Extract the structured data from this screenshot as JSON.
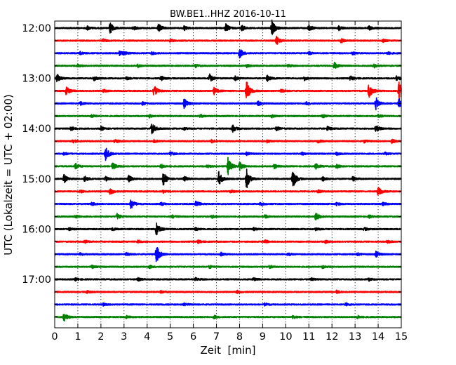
{
  "chart_data": {
    "type": "line",
    "title": "BW.BE1..HHZ 2016-10-11",
    "xlabel": "Zeit  [min]",
    "ylabel": "UTC (Lokalzeit = UTC + 02:00)",
    "xlim": [
      0,
      15
    ],
    "x_ticks": [
      "0",
      "1",
      "2",
      "3",
      "4",
      "5",
      "6",
      "7",
      "8",
      "9",
      "10",
      "11",
      "12",
      "13",
      "14",
      "15"
    ],
    "hour_labels": [
      "12:00",
      "13:00",
      "14:00",
      "15:00",
      "16:00",
      "17:00"
    ],
    "grid": "vertical-dotted",
    "colors": [
      "#000000",
      "#ff0000",
      "#0000ff",
      "#008000"
    ],
    "row_interval_min": 15,
    "series": [
      {
        "start": "12:00",
        "events": [
          [
            1.4,
            3
          ],
          [
            2.4,
            8
          ],
          [
            3.4,
            3
          ],
          [
            4.5,
            6
          ],
          [
            5.6,
            3
          ],
          [
            7.4,
            6
          ],
          [
            8.1,
            4
          ],
          [
            9.4,
            11
          ],
          [
            11.0,
            5
          ],
          [
            12.3,
            3
          ],
          [
            13.6,
            3
          ]
        ]
      },
      {
        "start": "12:15",
        "events": [
          [
            2.1,
            2
          ],
          [
            5.0,
            2
          ],
          [
            9.6,
            6
          ],
          [
            12.4,
            3
          ],
          [
            14.2,
            2
          ]
        ]
      },
      {
        "start": "12:30",
        "events": [
          [
            1.1,
            2
          ],
          [
            2.8,
            3
          ],
          [
            3.0,
            2
          ],
          [
            4.2,
            2
          ],
          [
            8.0,
            7
          ],
          [
            11.0,
            2
          ],
          [
            12.9,
            2
          ],
          [
            14.4,
            2
          ]
        ]
      },
      {
        "start": "12:45",
        "events": [
          [
            1.0,
            2
          ],
          [
            3.6,
            2
          ],
          [
            6.1,
            2
          ],
          [
            8.3,
            2
          ],
          [
            10.1,
            2
          ],
          [
            12.1,
            5
          ],
          [
            13.8,
            3
          ]
        ]
      },
      {
        "start": "13:00",
        "events": [
          [
            0.1,
            6
          ],
          [
            1.7,
            3
          ],
          [
            3.1,
            2
          ],
          [
            4.6,
            3
          ],
          [
            6.7,
            6
          ],
          [
            7.8,
            3
          ],
          [
            9.2,
            4
          ],
          [
            10.8,
            3
          ],
          [
            12.8,
            3
          ],
          [
            14.8,
            4
          ]
        ]
      },
      {
        "start": "13:15",
        "events": [
          [
            0.5,
            6
          ],
          [
            2.1,
            2
          ],
          [
            4.3,
            8
          ],
          [
            6.9,
            5
          ],
          [
            8.3,
            14
          ],
          [
            9.8,
            2
          ],
          [
            13.6,
            11
          ],
          [
            14.9,
            16
          ]
        ]
      },
      {
        "start": "13:30",
        "events": [
          [
            1.1,
            3
          ],
          [
            3.8,
            2
          ],
          [
            5.6,
            7
          ],
          [
            8.8,
            3
          ],
          [
            10.9,
            2
          ],
          [
            13.9,
            9
          ],
          [
            14.9,
            7
          ]
        ]
      },
      {
        "start": "13:45",
        "events": [
          [
            1.6,
            2
          ],
          [
            4.1,
            2
          ],
          [
            6.3,
            2
          ],
          [
            9.4,
            2
          ],
          [
            11.6,
            2
          ],
          [
            14.0,
            2
          ]
        ]
      },
      {
        "start": "14:00",
        "events": [
          [
            0.7,
            3
          ],
          [
            2.0,
            3
          ],
          [
            4.2,
            9
          ],
          [
            5.6,
            2
          ],
          [
            7.7,
            5
          ],
          [
            9.6,
            3
          ],
          [
            11.8,
            3
          ],
          [
            13.9,
            5
          ]
        ]
      },
      {
        "start": "14:15",
        "events": [
          [
            0.8,
            2
          ],
          [
            2.6,
            3
          ],
          [
            4.3,
            2
          ],
          [
            6.8,
            2
          ],
          [
            9.2,
            2
          ],
          [
            11.4,
            2
          ],
          [
            13.4,
            2
          ],
          [
            14.6,
            3
          ]
        ]
      },
      {
        "start": "14:30",
        "events": [
          [
            0.4,
            2
          ],
          [
            2.2,
            11
          ],
          [
            5.0,
            3
          ],
          [
            8.3,
            2
          ],
          [
            10.7,
            2
          ],
          [
            12.2,
            2
          ],
          [
            14.3,
            2
          ]
        ]
      },
      {
        "start": "14:45",
        "events": [
          [
            0.9,
            4
          ],
          [
            2.5,
            5
          ],
          [
            4.6,
            3
          ],
          [
            6.6,
            2
          ],
          [
            7.5,
            12
          ],
          [
            8.0,
            6
          ],
          [
            9.5,
            3
          ],
          [
            11.3,
            4
          ],
          [
            12.2,
            3
          ]
        ]
      },
      {
        "start": "15:00",
        "events": [
          [
            0.4,
            6
          ],
          [
            1.3,
            4
          ],
          [
            2.2,
            3
          ],
          [
            3.2,
            5
          ],
          [
            4.7,
            10
          ],
          [
            5.6,
            4
          ],
          [
            7.1,
            10
          ],
          [
            8.3,
            15
          ],
          [
            10.3,
            14
          ],
          [
            11.6,
            3
          ],
          [
            12.9,
            3
          ]
        ]
      },
      {
        "start": "15:15",
        "events": [
          [
            1.1,
            2
          ],
          [
            2.4,
            5
          ],
          [
            4.7,
            2
          ],
          [
            7.6,
            2
          ],
          [
            11.4,
            2
          ],
          [
            14.0,
            6
          ]
        ]
      },
      {
        "start": "15:30",
        "events": [
          [
            1.6,
            2
          ],
          [
            3.3,
            7
          ],
          [
            4.6,
            2
          ],
          [
            6.1,
            5
          ],
          [
            8.9,
            2
          ],
          [
            12.2,
            2
          ],
          [
            14.2,
            2
          ]
        ]
      },
      {
        "start": "15:45",
        "events": [
          [
            0.9,
            2
          ],
          [
            2.7,
            4
          ],
          [
            5.1,
            2
          ],
          [
            6.8,
            2
          ],
          [
            9.1,
            2
          ],
          [
            11.3,
            6
          ],
          [
            13.6,
            2
          ]
        ]
      },
      {
        "start": "16:00",
        "events": [
          [
            0.6,
            2
          ],
          [
            2.5,
            2
          ],
          [
            4.4,
            10
          ],
          [
            6.1,
            2
          ],
          [
            8.6,
            2
          ],
          [
            11.3,
            2
          ],
          [
            13.4,
            2
          ]
        ]
      },
      {
        "start": "16:15",
        "events": [
          [
            1.3,
            2
          ],
          [
            3.6,
            2
          ],
          [
            6.2,
            2
          ],
          [
            9.1,
            2
          ],
          [
            11.7,
            2
          ],
          [
            14.4,
            2
          ]
        ]
      },
      {
        "start": "16:30",
        "events": [
          [
            1.1,
            2
          ],
          [
            3.1,
            2
          ],
          [
            4.4,
            13
          ],
          [
            7.2,
            2
          ],
          [
            10.1,
            2
          ],
          [
            13.1,
            2
          ],
          [
            13.9,
            4
          ]
        ]
      },
      {
        "start": "16:45",
        "events": [
          [
            1.6,
            2
          ],
          [
            4.1,
            2
          ],
          [
            6.7,
            2
          ],
          [
            9.3,
            2
          ],
          [
            11.6,
            2
          ]
        ]
      },
      {
        "start": "17:00",
        "events": [
          [
            0.9,
            2
          ],
          [
            3.6,
            2
          ],
          [
            6.1,
            2
          ],
          [
            8.6,
            2
          ],
          [
            11.1,
            2
          ],
          [
            13.6,
            2
          ]
        ]
      },
      {
        "start": "17:15",
        "events": [
          [
            1.4,
            2
          ],
          [
            4.6,
            2
          ],
          [
            7.9,
            2
          ],
          [
            12.2,
            2
          ]
        ]
      },
      {
        "start": "17:30",
        "events": [
          [
            2.1,
            2
          ],
          [
            5.6,
            2
          ],
          [
            9.1,
            2
          ],
          [
            12.6,
            2
          ]
        ]
      },
      {
        "start": "17:45",
        "events": [
          [
            0.4,
            6
          ],
          [
            3.1,
            2
          ],
          [
            6.9,
            2
          ],
          [
            10.3,
            2
          ],
          [
            13.1,
            2
          ]
        ]
      }
    ]
  }
}
